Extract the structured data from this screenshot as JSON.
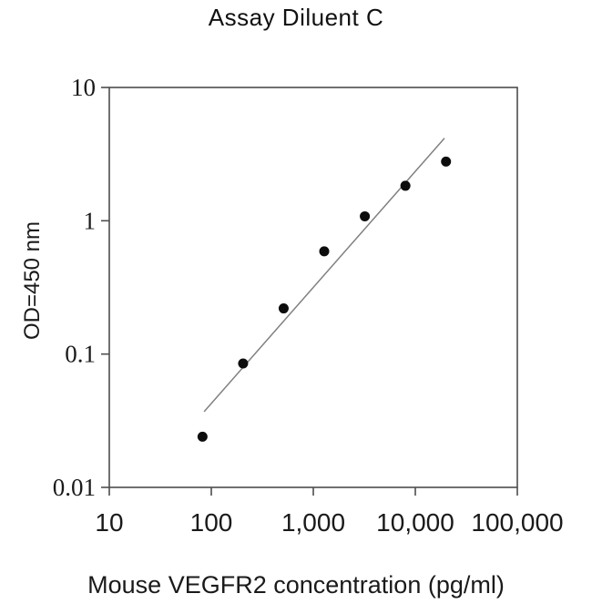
{
  "chart_data": {
    "type": "scatter",
    "title": "Assay Diluent C",
    "xlabel": "Mouse VEGFR2 concentration (pg/ml)",
    "ylabel": "OD=450 nm",
    "x_scale": "log",
    "y_scale": "log",
    "xlim": [
      10,
      100000
    ],
    "ylim": [
      0.01,
      10
    ],
    "grid": false,
    "legend": "none",
    "x_ticks": [
      {
        "value": 10,
        "label": "10"
      },
      {
        "value": 100,
        "label": "100"
      },
      {
        "value": 1000,
        "label": "1,000"
      },
      {
        "value": 10000,
        "label": "10,000"
      },
      {
        "value": 100000,
        "label": "100,000"
      }
    ],
    "y_ticks": [
      {
        "value": 10,
        "label": "10"
      },
      {
        "value": 1,
        "label": "1"
      },
      {
        "value": 0.1,
        "label": "0.1"
      },
      {
        "value": 0.01,
        "label": "0.01"
      }
    ],
    "series": [
      {
        "name": "standard-curve-points",
        "marker": "filled-circle",
        "points": [
          {
            "x": 82,
            "y": 0.024
          },
          {
            "x": 205,
            "y": 0.085
          },
          {
            "x": 512,
            "y": 0.22
          },
          {
            "x": 1280,
            "y": 0.59
          },
          {
            "x": 3200,
            "y": 1.08
          },
          {
            "x": 8000,
            "y": 1.83
          },
          {
            "x": 20000,
            "y": 2.78
          }
        ]
      }
    ],
    "trendline": {
      "x1": 85,
      "y1": 0.037,
      "x2": 19300,
      "y2": 4.16
    },
    "colors": {
      "point": "#0d0d0d",
      "trendline": "#808080",
      "frame": "#4d4d4d",
      "text": "#1a1a1a",
      "background": "#ffffff"
    }
  }
}
